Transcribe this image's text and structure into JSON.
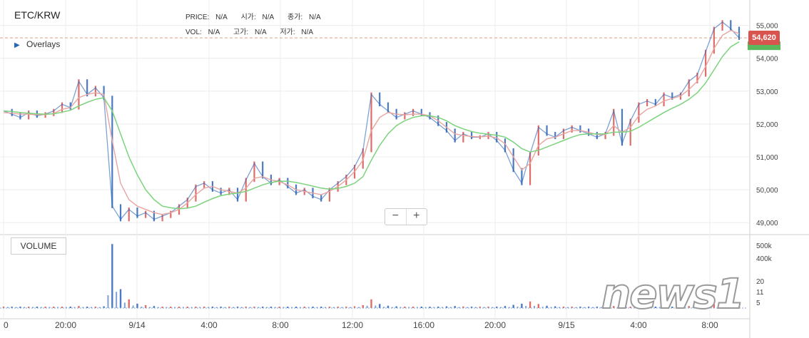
{
  "header": {
    "pair": "ETC/KRW",
    "overlays_label": "Overlays",
    "info_row1": [
      {
        "label": "PRICE:",
        "value": "N/A"
      },
      {
        "label": "시가:",
        "value": "N/A"
      },
      {
        "label": "종가:",
        "value": "N/A"
      }
    ],
    "info_row2": [
      {
        "label": "VOL:",
        "value": "N/A"
      },
      {
        "label": "고가:",
        "value": "N/A"
      },
      {
        "label": "저가:",
        "value": "N/A"
      }
    ]
  },
  "controls": {
    "zoom_out": "−",
    "zoom_in": "+"
  },
  "volume_label": "VOLUME",
  "current_price_label": "54,620",
  "watermark": "news1",
  "colors": {
    "up": "#d9534f",
    "down": "#2a63b8",
    "ma_short": "#e8a5a0",
    "ma_long": "#7cd37c",
    "current_line": "#e0a080"
  },
  "chart_data": [
    {
      "type": "line",
      "title": "",
      "x_ticks": [
        "0",
        "20:00",
        "9/14",
        "4:00",
        "8:00",
        "12:00",
        "16:00",
        "20:00",
        "9/15",
        "4:00",
        "8:00"
      ],
      "y_ticks": [
        "49,000",
        "50,000",
        "51,000",
        "52,000",
        "53,000",
        "54,000",
        "55,000"
      ],
      "ylim": [
        48700,
        55600
      ],
      "current_price": 54620,
      "grid": true,
      "series": [
        {
          "values": [
            52400,
            52300,
            52200,
            52350,
            52250,
            52300,
            52400,
            52600,
            52500,
            53300,
            52900,
            53100,
            52800,
            49500,
            49100,
            49400,
            49200,
            49300,
            49100,
            49200,
            49300,
            49500,
            49700,
            50100,
            50200,
            50000,
            49900,
            50000,
            49700,
            50300,
            50800,
            50400,
            50200,
            50300,
            50100,
            49900,
            50000,
            49800,
            49700,
            50000,
            50200,
            50400,
            50700,
            51200,
            52900,
            52600,
            52400,
            52200,
            52300,
            52400,
            52300,
            52200,
            52000,
            51800,
            51500,
            51700,
            51600,
            51600,
            51700,
            51500,
            51200,
            50600,
            50200,
            51100,
            51900,
            51700,
            51600,
            51800,
            51900,
            51800,
            51700,
            51600,
            51700,
            52400,
            51400,
            52100,
            52600,
            52700,
            52600,
            52900,
            52800,
            52900,
            53300,
            53500,
            54200,
            54900,
            55100,
            54900,
            54620
          ]
        },
        {
          "values": [
            52350,
            52330,
            52300,
            52300,
            52280,
            52290,
            52320,
            52450,
            52500,
            52800,
            52900,
            52950,
            52900,
            51500,
            50200,
            49700,
            49500,
            49400,
            49300,
            49250,
            49300,
            49400,
            49600,
            49850,
            50050,
            50100,
            50000,
            49950,
            49900,
            50050,
            50350,
            50400,
            50300,
            50250,
            50150,
            50000,
            49950,
            49900,
            49850,
            49950,
            50100,
            50300,
            50550,
            50900,
            51800,
            52200,
            52350,
            52300,
            52280,
            52300,
            52300,
            52250,
            52100,
            51900,
            51700,
            51650,
            51620,
            51610,
            51630,
            51580,
            51400,
            51000,
            50600,
            50800,
            51350,
            51550,
            51600,
            51700,
            51800,
            51800,
            51750,
            51680,
            51680,
            51950,
            51750,
            51900,
            52250,
            52450,
            52550,
            52700,
            52780,
            52850,
            53050,
            53300,
            53750,
            54300,
            54700,
            54850,
            54750
          ]
        },
        {
          "values": [
            52400,
            52380,
            52350,
            52330,
            52310,
            52300,
            52310,
            52360,
            52420,
            52550,
            52660,
            52750,
            52800,
            52400,
            51700,
            51000,
            50450,
            50000,
            49700,
            49500,
            49450,
            49420,
            49440,
            49500,
            49620,
            49730,
            49820,
            49870,
            49900,
            49950,
            50050,
            50150,
            50220,
            50260,
            50260,
            50220,
            50170,
            50110,
            50050,
            50020,
            50040,
            50100,
            50200,
            50400,
            50900,
            51350,
            51700,
            51950,
            52100,
            52200,
            52250,
            52250,
            52200,
            52100,
            51950,
            51850,
            51770,
            51720,
            51690,
            51660,
            51600,
            51450,
            51250,
            51150,
            51200,
            51300,
            51400,
            51500,
            51600,
            51680,
            51700,
            51700,
            51700,
            51750,
            51750,
            51780,
            51900,
            52050,
            52200,
            52350,
            52480,
            52600,
            52750,
            52950,
            53250,
            53650,
            54050,
            54350,
            54500
          ]
        }
      ]
    },
    {
      "type": "bar",
      "title": "",
      "y_ticks": [
        "500k",
        "400k",
        "20",
        "11",
        "5"
      ],
      "values": [
        3,
        6,
        4,
        7,
        5,
        8,
        6,
        4,
        10,
        14,
        7,
        8,
        12,
        440,
        130,
        60,
        30,
        20,
        14,
        9,
        10,
        8,
        7,
        9,
        8,
        7,
        6,
        8,
        7,
        10,
        9,
        8,
        6,
        7,
        6,
        5,
        6,
        7,
        6,
        8,
        9,
        10,
        12,
        20,
        60,
        28,
        16,
        12,
        10,
        9,
        8,
        9,
        10,
        12,
        14,
        11,
        9,
        8,
        7,
        9,
        14,
        22,
        30,
        45,
        28,
        16,
        12,
        10,
        9,
        8,
        7,
        6,
        7,
        14,
        12,
        10,
        14,
        12,
        10,
        9,
        10,
        11,
        14,
        16,
        20,
        26,
        30,
        24,
        18
      ]
    }
  ]
}
